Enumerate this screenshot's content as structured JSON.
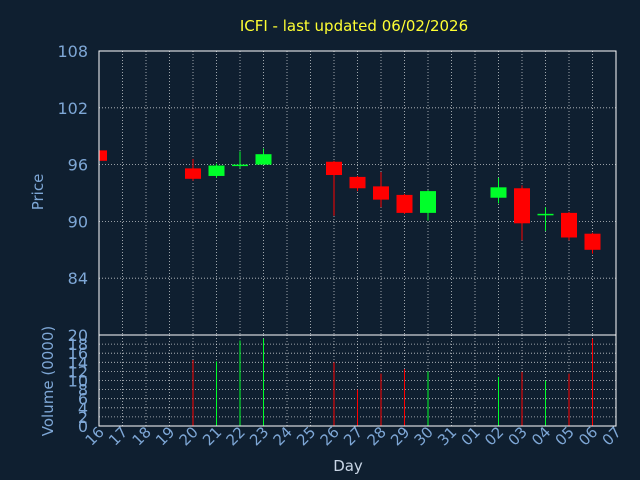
{
  "chart_data": {
    "type": "candlestick",
    "title": "ICFI - last updated 06/02/2026",
    "xlabel": "Day",
    "colors": {
      "background": "#0f1f30",
      "title": "#ffff33",
      "axis_text": "#7ea7d6",
      "frame": "#ffffff",
      "up": "#00ff2a",
      "down": "#ff0000"
    },
    "price_panel": {
      "ylabel": "Price",
      "ylim": [
        78,
        108
      ],
      "yticks": [
        "108",
        "102",
        "96",
        "90",
        "84"
      ],
      "ytick_values": [
        108,
        102,
        96,
        90,
        84
      ],
      "grid": true
    },
    "volume_panel": {
      "ylabel": "Volume (0000)",
      "ylim": [
        0,
        20
      ],
      "yticks": [
        "20",
        "18",
        "16",
        "14",
        "12",
        "10",
        "8",
        "6",
        "4",
        "2",
        "0"
      ],
      "ytick_values": [
        20,
        18,
        16,
        14,
        12,
        10,
        8,
        6,
        4,
        2,
        0
      ],
      "grid": true
    },
    "x_ticks": [
      "16",
      "17",
      "18",
      "19",
      "20",
      "21",
      "22",
      "23",
      "24",
      "25",
      "26",
      "27",
      "28",
      "29",
      "30",
      "31",
      "01",
      "02",
      "03",
      "04",
      "05",
      "06",
      "07"
    ],
    "candles": [
      {
        "day": "16",
        "open": 97.5,
        "close": 96.4,
        "high": 97.5,
        "low": 96.2,
        "volume": 0
      },
      {
        "day": "20",
        "open": 95.6,
        "close": 94.5,
        "high": 96.6,
        "low": 94.3,
        "volume": 14.5
      },
      {
        "day": "21",
        "open": 94.8,
        "close": 95.9,
        "high": 96.1,
        "low": 94.6,
        "volume": 14.2
      },
      {
        "day": "22",
        "open": 95.9,
        "close": 96.0,
        "high": 97.4,
        "low": 95.6,
        "volume": 18.8
      },
      {
        "day": "23",
        "open": 96.0,
        "close": 97.1,
        "high": 97.7,
        "low": 96.0,
        "volume": 19.2
      },
      {
        "day": "26",
        "open": 96.3,
        "close": 94.9,
        "high": 96.4,
        "low": 90.6,
        "volume": 14.0
      },
      {
        "day": "27",
        "open": 94.7,
        "close": 93.5,
        "high": 94.8,
        "low": 93.2,
        "volume": 8.0
      },
      {
        "day": "28",
        "open": 93.7,
        "close": 92.3,
        "high": 95.2,
        "low": 91.5,
        "volume": 11.5
      },
      {
        "day": "29",
        "open": 92.8,
        "close": 90.9,
        "high": 92.9,
        "low": 90.8,
        "volume": 12.5
      },
      {
        "day": "30",
        "open": 90.9,
        "close": 93.2,
        "high": 93.3,
        "low": 90.1,
        "volume": 12.0
      },
      {
        "day": "02",
        "open": 92.5,
        "close": 93.6,
        "high": 94.6,
        "low": 91.9,
        "volume": 10.8
      },
      {
        "day": "03",
        "open": 93.5,
        "close": 89.8,
        "high": 93.8,
        "low": 88.0,
        "volume": 11.9
      },
      {
        "day": "04",
        "open": 90.7,
        "close": 90.8,
        "high": 91.5,
        "low": 89.0,
        "volume": 10.0
      },
      {
        "day": "05",
        "open": 90.9,
        "close": 88.3,
        "high": 91.0,
        "low": 88.0,
        "volume": 11.5
      },
      {
        "day": "06",
        "open": 88.7,
        "close": 87.0,
        "high": 88.8,
        "low": 86.6,
        "volume": 19.2
      }
    ]
  }
}
